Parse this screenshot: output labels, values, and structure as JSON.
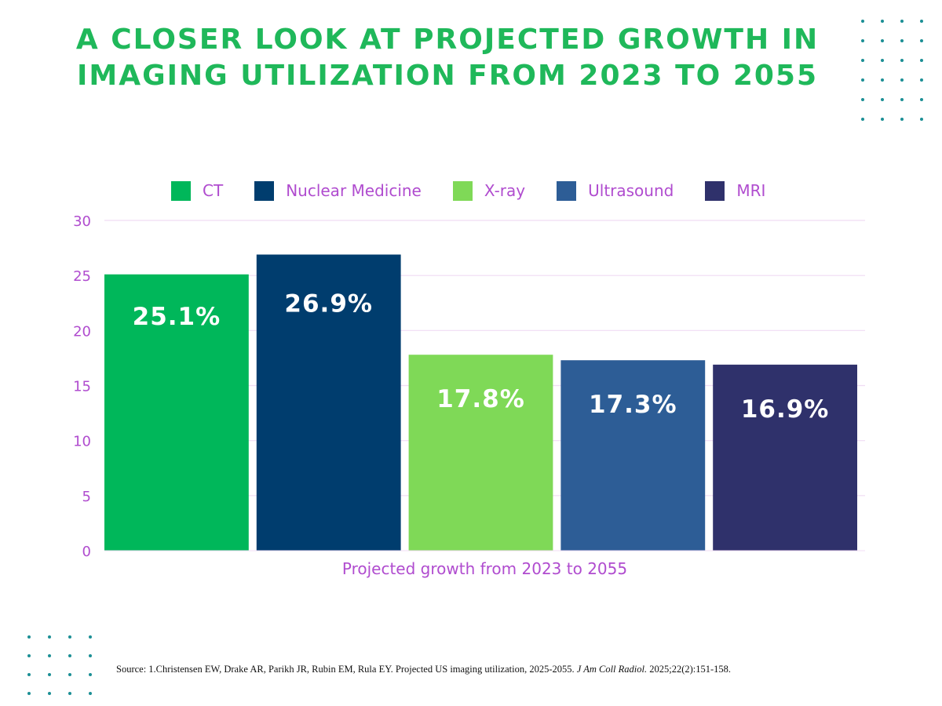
{
  "title": {
    "line1": "A CLOSER LOOK AT PROJECTED GROWTH IN",
    "line2": "IMAGING UTILIZATION FROM 2023 TO 2055"
  },
  "colors": {
    "title": "#1fb85a",
    "axis_text": "#b04ccf",
    "gridline": "#f0dcf4",
    "dots": "#1b8f95"
  },
  "legend": [
    {
      "label": "CT",
      "color": "#00b75a"
    },
    {
      "label": "Nuclear Medicine",
      "color": "#003d6e"
    },
    {
      "label": "X-ray",
      "color": "#7fd957"
    },
    {
      "label": "Ultrasound",
      "color": "#2d5d96"
    },
    {
      "label": "MRI",
      "color": "#2f316b"
    }
  ],
  "chart_data": {
    "type": "bar",
    "title": "A CLOSER LOOK AT PROJECTED GROWTH IN IMAGING UTILIZATION FROM 2023 TO 2055",
    "xlabel": "Projected growth from 2023 to 2055",
    "ylabel": "",
    "ylim": [
      0,
      30
    ],
    "yticks": [
      0,
      5,
      10,
      15,
      20,
      25,
      30
    ],
    "grid": true,
    "legend_position": "top",
    "categories": [
      "CT",
      "Nuclear Medicine",
      "X-ray",
      "Ultrasound",
      "MRI"
    ],
    "values": [
      25.1,
      26.9,
      17.8,
      17.3,
      16.9
    ],
    "data_labels": [
      "25.1%",
      "26.9%",
      "17.8%",
      "17.3%",
      "16.9%"
    ],
    "colors": [
      "#00b75a",
      "#003d6e",
      "#7fd957",
      "#2d5d96",
      "#2f316b"
    ]
  },
  "source": {
    "prefix": "Source: 1.Christensen EW, Drake AR, Parikh JR, Rubin EM, Rula EY. Projected US imaging utilization, 2025-2055. ",
    "journal": "J Am Coll Radiol.",
    "suffix": " 2025;22(2):151-158."
  }
}
